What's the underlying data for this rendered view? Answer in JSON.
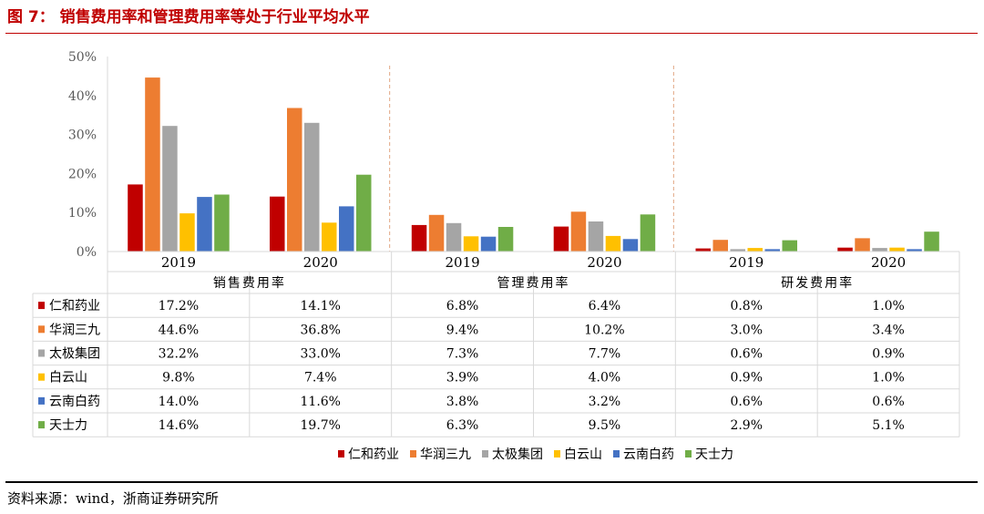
{
  "header": {
    "title": "图 7： 销售费用率和管理费用率等处于行业平均水平"
  },
  "footer": {
    "source": "资料来源：wind，浙商证券研究所"
  },
  "chart_data": {
    "type": "bar",
    "groups": [
      {
        "name": "销售费用率",
        "years": [
          "2019",
          "2020"
        ]
      },
      {
        "name": "管理费用率",
        "years": [
          "2019",
          "2020"
        ]
      },
      {
        "name": "研发费用率",
        "years": [
          "2019",
          "2020"
        ]
      }
    ],
    "categories": [
      "2019",
      "2020",
      "2019",
      "2020",
      "2019",
      "2020"
    ],
    "series": [
      {
        "name": "仁和药业",
        "color": "#c00000",
        "values": [
          17.2,
          14.1,
          6.8,
          6.4,
          0.8,
          1.0
        ]
      },
      {
        "name": "华润三九",
        "color": "#ed7d31",
        "values": [
          44.6,
          36.8,
          9.4,
          10.2,
          3.0,
          3.4
        ]
      },
      {
        "name": "太极集团",
        "color": "#a5a5a5",
        "values": [
          32.2,
          33.0,
          7.3,
          7.7,
          0.6,
          0.9
        ]
      },
      {
        "name": "白云山",
        "color": "#ffc000",
        "values": [
          9.8,
          7.4,
          3.9,
          4.0,
          0.9,
          1.0
        ]
      },
      {
        "name": "云南白药",
        "color": "#4472c4",
        "values": [
          14.0,
          11.6,
          3.8,
          3.2,
          0.6,
          0.6
        ]
      },
      {
        "name": "天士力",
        "color": "#70ad47",
        "values": [
          14.6,
          19.7,
          6.3,
          9.5,
          2.9,
          5.1
        ]
      }
    ],
    "value_labels": [
      [
        "17.2%",
        "14.1%",
        "6.8%",
        "6.4%",
        "0.8%",
        "1.0%"
      ],
      [
        "44.6%",
        "36.8%",
        "9.4%",
        "10.2%",
        "3.0%",
        "3.4%"
      ],
      [
        "32.2%",
        "33.0%",
        "7.3%",
        "7.7%",
        "0.6%",
        "0.9%"
      ],
      [
        "9.8%",
        "7.4%",
        "3.9%",
        "4.0%",
        "0.9%",
        "1.0%"
      ],
      [
        "14.0%",
        "11.6%",
        "3.8%",
        "3.2%",
        "0.6%",
        "0.6%"
      ],
      [
        "14.6%",
        "19.7%",
        "6.3%",
        "9.5%",
        "2.9%",
        "5.1%"
      ]
    ],
    "yticks": [
      "0%",
      "10%",
      "20%",
      "30%",
      "40%",
      "50%"
    ],
    "ylim": [
      0,
      50
    ],
    "grid": false,
    "legend": "bottom",
    "data_table": true,
    "group_separator": "dashed"
  }
}
